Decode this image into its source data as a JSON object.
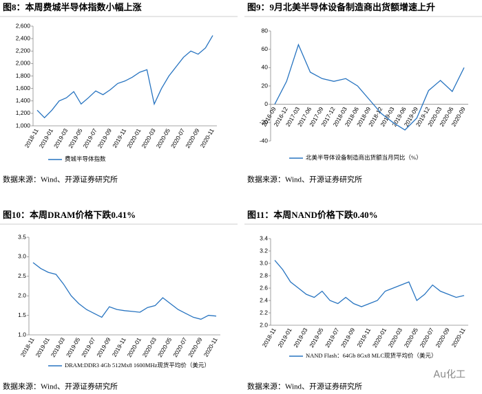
{
  "chart_data": [
    {
      "type": "line",
      "title": "图8：本周费城半导体指数小幅上涨",
      "source": "数据来源：Wind、开源证券研究所",
      "x": [
        "2018-11",
        "2018-12",
        "2019-01",
        "2019-02",
        "2019-03",
        "2019-04",
        "2019-05",
        "2019-06",
        "2019-07",
        "2019-08",
        "2019-09",
        "2019-10",
        "2019-11",
        "2019-12",
        "2020-01",
        "2020-02",
        "2020-03",
        "2020-04",
        "2020-05",
        "2020-06",
        "2020-07",
        "2020-08",
        "2020-09",
        "2020-10",
        "2020-11"
      ],
      "xticks": [
        "2018-11",
        "2019-01",
        "2019-03",
        "2019-05",
        "2019-07",
        "2019-09",
        "2019-11",
        "2020-01",
        "2020-03",
        "2020-05",
        "2020-07",
        "2020-09",
        "2020-11"
      ],
      "series": [
        {
          "name": "费城半导体指数",
          "color": "#2673c0",
          "values": [
            1250,
            1130,
            1250,
            1400,
            1450,
            1550,
            1350,
            1450,
            1560,
            1500,
            1580,
            1680,
            1720,
            1780,
            1860,
            1900,
            1350,
            1600,
            1800,
            1950,
            2100,
            2200,
            2150,
            2250,
            2450
          ]
        }
      ],
      "ylim": [
        1000,
        2600
      ],
      "yticks": [
        {
          "value": 1000,
          "label": "1,000"
        },
        {
          "value": 1200,
          "label": "1,200"
        },
        {
          "value": 1400,
          "label": "1,400"
        },
        {
          "value": 1600,
          "label": "1,600"
        },
        {
          "value": 1800,
          "label": "1,800"
        },
        {
          "value": 2000,
          "label": "2,000"
        },
        {
          "value": 2200,
          "label": "2,200"
        },
        {
          "value": 2400,
          "label": "2,400"
        },
        {
          "value": 2600,
          "label": "2,600"
        }
      ]
    },
    {
      "type": "line",
      "title": "图9：9月北美半导体设备制造商出货额增速上升",
      "source": "数据来源：Wind、开源证券研究所",
      "x": [
        "2016-09",
        "2016-12",
        "2017-03",
        "2017-06",
        "2017-09",
        "2017-12",
        "2018-03",
        "2018-06",
        "2018-09",
        "2018-12",
        "2019-03",
        "2019-06",
        "2019-09",
        "2019-12",
        "2020-03",
        "2020-06",
        "2020-09"
      ],
      "xticks": [
        "2016-09",
        "2016-12",
        "2017-03",
        "2017-06",
        "2017-09",
        "2017-12",
        "2018-03",
        "2018-06",
        "2018-09",
        "2018-12",
        "2019-03",
        "2019-06",
        "2019-09",
        "2019-12",
        "2020-03",
        "2020-06",
        "2020-09"
      ],
      "series": [
        {
          "name": "北美半导体设备制造商出货额当月同比（%）",
          "color": "#2673c0",
          "values": [
            0,
            25,
            65,
            35,
            28,
            25,
            28,
            20,
            5,
            -10,
            -20,
            -28,
            -15,
            15,
            26,
            14,
            40
          ]
        }
      ],
      "ylim": [
        -40,
        80
      ],
      "yticks": [
        -40,
        -20,
        0,
        20,
        40,
        60,
        80
      ]
    },
    {
      "type": "line",
      "title": "图10：本周DRAM价格下跌0.41%",
      "source": "数据来源：Wind、开源证券研究所",
      "x": [
        "2018-11",
        "2018-12",
        "2019-01",
        "2019-02",
        "2019-03",
        "2019-04",
        "2019-05",
        "2019-06",
        "2019-07",
        "2019-08",
        "2019-09",
        "2019-10",
        "2019-11",
        "2019-12",
        "2020-01",
        "2020-02",
        "2020-03",
        "2020-04",
        "2020-05",
        "2020-06",
        "2020-07",
        "2020-08",
        "2020-09",
        "2020-10",
        "2020-11"
      ],
      "xticks": [
        "2018-11",
        "2019-01",
        "2019-03",
        "2019-05",
        "2019-07",
        "2019-09",
        "2019-11",
        "2020-01",
        "2020-03",
        "2020-05",
        "2020-07",
        "2020-09",
        "2020-11"
      ],
      "series": [
        {
          "name": "DRAM:DDR3 4Gb 512Mx8 1600MHz现货平均价（美元）",
          "color": "#2673c0",
          "values": [
            2.85,
            2.7,
            2.6,
            2.55,
            2.3,
            2.0,
            1.8,
            1.65,
            1.55,
            1.45,
            1.72,
            1.65,
            1.62,
            1.6,
            1.58,
            1.7,
            1.75,
            1.95,
            1.8,
            1.65,
            1.55,
            1.45,
            1.4,
            1.5,
            1.48
          ]
        }
      ],
      "ylim": [
        1.0,
        3.5
      ],
      "yticks": [
        {
          "value": 1.0,
          "label": "1.0"
        },
        1.5,
        {
          "value": 2.0,
          "label": "2.0"
        },
        2.5,
        {
          "value": 3.0,
          "label": "3.0"
        },
        3.5
      ]
    },
    {
      "type": "line",
      "title": "图11：本周NAND价格下跌0.40%",
      "source": "数据来源：Wind、开源证券研究所",
      "x": [
        "2018-11",
        "2018-12",
        "2019-01",
        "2019-02",
        "2019-03",
        "2019-04",
        "2019-05",
        "2019-06",
        "2019-07",
        "2019-08",
        "2019-09",
        "2019-10",
        "2019-11",
        "2019-12",
        "2020-01",
        "2020-02",
        "2020-03",
        "2020-04",
        "2020-05",
        "2020-06",
        "2020-07",
        "2020-08",
        "2020-09",
        "2020-10",
        "2020-11"
      ],
      "xticks": [
        "2018-11",
        "2019-01",
        "2019-03",
        "2019-05",
        "2019-07",
        "2019-09",
        "2019-11",
        "2020-01",
        "2020-03",
        "2020-05",
        "2020-07",
        "2020-09",
        "2020-11"
      ],
      "series": [
        {
          "name": "NAND Flash：64Gb 8Gx8 MLC现货平均价（美元）",
          "color": "#2673c0",
          "values": [
            3.05,
            2.9,
            2.7,
            2.6,
            2.5,
            2.45,
            2.55,
            2.4,
            2.35,
            2.45,
            2.35,
            2.3,
            2.35,
            2.4,
            2.55,
            2.6,
            2.65,
            2.7,
            2.4,
            2.5,
            2.65,
            2.55,
            2.5,
            2.45,
            2.48
          ]
        }
      ],
      "ylim": [
        2.0,
        3.4
      ],
      "yticks": [
        {
          "value": 2.0,
          "label": "2.0"
        },
        2.2,
        2.4,
        2.6,
        2.8,
        {
          "value": 3.0,
          "label": "3.0"
        },
        3.2,
        3.4
      ]
    }
  ],
  "watermark": "Au化工"
}
